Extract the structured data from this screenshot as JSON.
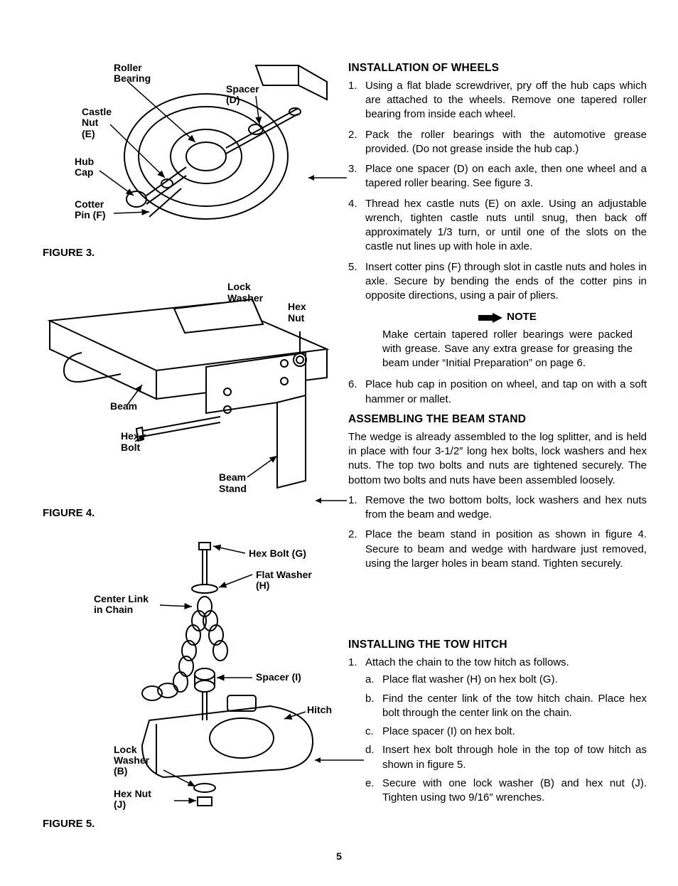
{
  "page_number": "5",
  "figures": {
    "fig3": {
      "caption": "FIGURE 3.",
      "labels": {
        "roller_bearing": "Roller\nBearing",
        "spacer": "Spacer\n(D)",
        "castle_nut": "Castle\nNut\n(E)",
        "hub_cap": "Hub\nCap",
        "cotter_pin": "Cotter\nPin (F)"
      }
    },
    "fig4": {
      "caption": "FIGURE 4.",
      "labels": {
        "lock_washer": "Lock\nWasher",
        "hex_nut": "Hex\nNut",
        "beam": "Beam",
        "hex_bolt": "Hex\nBolt",
        "beam_stand": "Beam\nStand"
      }
    },
    "fig5": {
      "caption": "FIGURE 5.",
      "labels": {
        "hex_bolt_g": "Hex Bolt (G)",
        "flat_washer_h": "Flat Washer\n(H)",
        "center_link": "Center Link\nin Chain",
        "spacer_i": "Spacer (I)",
        "hitch": "Hitch",
        "lock_washer_b": "Lock\nWasher\n(B)",
        "hex_nut_j": "Hex Nut\n(J)"
      }
    }
  },
  "sections": {
    "install_wheels": {
      "heading": "INSTALLATION OF WHEELS",
      "items": [
        "Using a flat blade screwdriver, pry off the hub caps which are attached to the wheels. Remove one tapered roller bearing from inside each wheel.",
        "Pack the roller bearings with the automotive grease provided. (Do not grease inside the hub cap.)",
        "Place one spacer (D) on each axle, then one wheel and a tapered roller bearing. See figure 3.",
        "Thread hex castle nuts (E) on axle. Using an adjustable wrench, tighten castle nuts until snug, then back off approximately 1/3 turn, or until one of the slots on the castle nut lines up with hole in axle.",
        "Insert cotter pins (F) through slot in castle nuts and holes in axle. Secure by bending the ends of the cotter pins in opposite directions, using a pair of pliers."
      ],
      "note_label": "NOTE",
      "note_text": "Make certain tapered roller bearings were packed with grease. Save any extra grease for greasing the beam under “Initial Preparation” on page 6.",
      "items_after": [
        "Place hub cap in position on wheel, and tap on with a soft hammer or mallet."
      ]
    },
    "assemble_beam": {
      "heading": "ASSEMBLING THE BEAM STAND",
      "intro": "The wedge is already assembled to the log splitter, and is held in place with four 3-1/2″ long hex bolts, lock washers and hex nuts. The top two bolts and nuts are tightened securely. The bottom two bolts and nuts have been assembled loosely.",
      "items": [
        "Remove the two bottom bolts, lock washers and hex nuts from the beam and wedge.",
        "Place the beam stand in position as shown in figure 4. Secure to beam and wedge with hardware just removed, using the larger holes in beam stand. Tighten securely."
      ]
    },
    "install_hitch": {
      "heading": "INSTALLING THE TOW HITCH",
      "items": [
        {
          "text": "Attach the chain to the tow hitch as follows.",
          "sub": [
            "Place flat washer (H) on hex bolt (G).",
            "Find the center link of the tow hitch chain. Place hex bolt through the center link on the chain.",
            "Place spacer (I) on hex bolt.",
            "Insert hex bolt through hole in the top of tow hitch as shown in figure 5.",
            "Secure with one lock washer (B) and hex nut (J). Tighten using two 9/16″ wrenches."
          ]
        }
      ]
    }
  }
}
